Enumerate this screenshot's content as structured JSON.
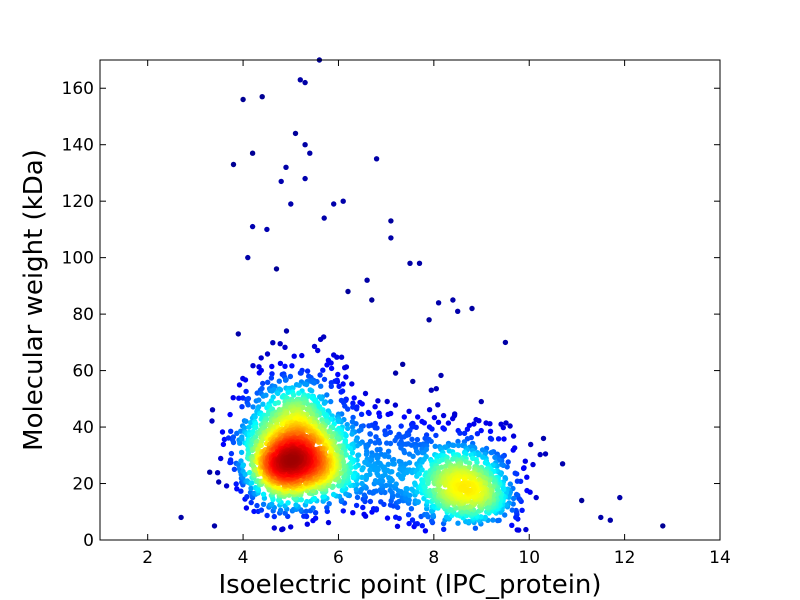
{
  "chart_data": {
    "type": "scatter",
    "title": "",
    "xlabel": "Isoelectric point (IPC_protein)",
    "ylabel": "Molecular weight (kDa)",
    "xlim": [
      1,
      14
    ],
    "ylim": [
      0,
      170
    ],
    "xticks": [
      2,
      4,
      6,
      8,
      10,
      12,
      14
    ],
    "yticks": [
      0,
      20,
      40,
      60,
      80,
      100,
      120,
      140,
      160
    ],
    "grid": false,
    "legend": "none",
    "colormap": "jet (point density)",
    "density_clusters": [
      {
        "center_x": 5.1,
        "center_y": 30,
        "spread_x": 0.55,
        "spread_y": 12,
        "weight": 0.62
      },
      {
        "center_x": 8.7,
        "center_y": 18,
        "spread_x": 0.55,
        "spread_y": 9,
        "weight": 0.26
      },
      {
        "center_x": 7.0,
        "center_y": 25,
        "spread_x": 0.7,
        "spread_y": 12,
        "weight": 0.12
      }
    ],
    "outlier_points": [
      {
        "x": 2.7,
        "y": 8
      },
      {
        "x": 3.3,
        "y": 24
      },
      {
        "x": 3.4,
        "y": 5
      },
      {
        "x": 3.8,
        "y": 133
      },
      {
        "x": 3.9,
        "y": 73
      },
      {
        "x": 4.0,
        "y": 156
      },
      {
        "x": 4.1,
        "y": 100
      },
      {
        "x": 4.2,
        "y": 137
      },
      {
        "x": 4.2,
        "y": 111
      },
      {
        "x": 4.4,
        "y": 157
      },
      {
        "x": 4.5,
        "y": 110
      },
      {
        "x": 4.7,
        "y": 96
      },
      {
        "x": 4.8,
        "y": 127
      },
      {
        "x": 4.9,
        "y": 132
      },
      {
        "x": 5.0,
        "y": 119
      },
      {
        "x": 5.1,
        "y": 144
      },
      {
        "x": 5.2,
        "y": 163
      },
      {
        "x": 5.3,
        "y": 162
      },
      {
        "x": 5.3,
        "y": 128
      },
      {
        "x": 5.3,
        "y": 140
      },
      {
        "x": 5.4,
        "y": 137
      },
      {
        "x": 5.6,
        "y": 170
      },
      {
        "x": 5.7,
        "y": 114
      },
      {
        "x": 5.9,
        "y": 119
      },
      {
        "x": 6.1,
        "y": 120
      },
      {
        "x": 6.2,
        "y": 88
      },
      {
        "x": 6.6,
        "y": 92
      },
      {
        "x": 6.7,
        "y": 85
      },
      {
        "x": 6.8,
        "y": 135
      },
      {
        "x": 7.1,
        "y": 113
      },
      {
        "x": 7.1,
        "y": 107
      },
      {
        "x": 7.5,
        "y": 98
      },
      {
        "x": 7.7,
        "y": 98
      },
      {
        "x": 7.9,
        "y": 78
      },
      {
        "x": 8.1,
        "y": 84
      },
      {
        "x": 8.4,
        "y": 85
      },
      {
        "x": 8.5,
        "y": 81
      },
      {
        "x": 8.8,
        "y": 82
      },
      {
        "x": 9.5,
        "y": 70
      },
      {
        "x": 10.3,
        "y": 36
      },
      {
        "x": 10.7,
        "y": 27
      },
      {
        "x": 11.1,
        "y": 14
      },
      {
        "x": 11.5,
        "y": 8
      },
      {
        "x": 11.7,
        "y": 7
      },
      {
        "x": 11.9,
        "y": 15
      },
      {
        "x": 12.8,
        "y": 5
      }
    ]
  }
}
